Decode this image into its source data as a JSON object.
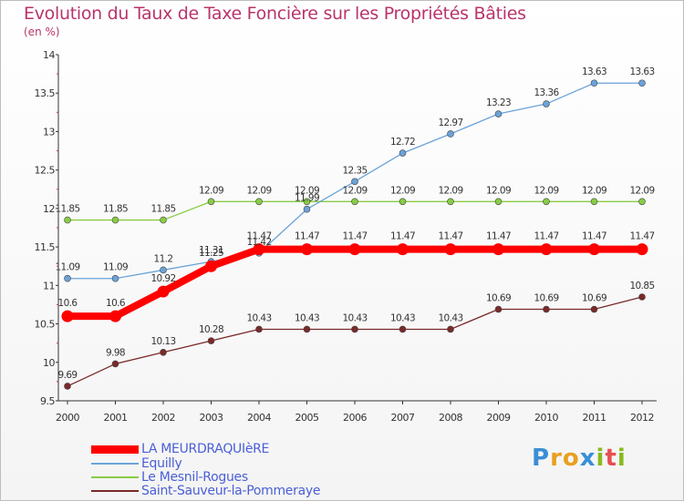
{
  "chart_data": {
    "type": "line",
    "title": "Evolution du Taux de Taxe Foncière sur les Propriétés Bâties",
    "subtitle": "(en %)",
    "xlabel": "",
    "ylabel": "",
    "categories": [
      "2000",
      "2001",
      "2002",
      "2003",
      "2004",
      "2005",
      "2006",
      "2007",
      "2008",
      "2009",
      "2010",
      "2011",
      "2012"
    ],
    "ylim": [
      9.5,
      14
    ],
    "yticks": [
      9.5,
      10,
      10.5,
      11,
      11.5,
      12,
      12.5,
      13,
      13.5,
      14
    ],
    "ytick_labels": [
      "9.5",
      "10",
      "10.5",
      "11",
      "11.5",
      "12",
      "12.5",
      "13",
      "13.5",
      "14"
    ],
    "series": [
      {
        "name": "LA MEURDRAQUIèRE",
        "color": "#ff0000",
        "values": [
          10.6,
          10.6,
          10.92,
          11.25,
          11.47,
          11.47,
          11.47,
          11.47,
          11.47,
          11.47,
          11.47,
          11.47,
          11.47
        ],
        "labels": [
          "10.6",
          "10.6",
          "10.92",
          "11.25",
          "11.47",
          "11.47",
          "11.47",
          "11.47",
          "11.47",
          "11.47",
          "11.47",
          "11.47",
          "11.47"
        ]
      },
      {
        "name": "Equilly",
        "color": "#6aa3d8",
        "values": [
          11.09,
          11.09,
          11.2,
          11.31,
          11.42,
          11.99,
          12.35,
          12.72,
          12.97,
          13.23,
          13.36,
          13.63,
          13.63
        ],
        "labels": [
          "11.09",
          "11.09",
          "11.2",
          "11.31",
          "11.42",
          "11.99",
          "12.35",
          "12.72",
          "12.97",
          "13.23",
          "13.36",
          "13.63",
          "13.63"
        ]
      },
      {
        "name": "Le Mesnil-Rogues",
        "color": "#88cc44",
        "values": [
          11.85,
          11.85,
          11.85,
          12.09,
          12.09,
          12.09,
          12.09,
          12.09,
          12.09,
          12.09,
          12.09,
          12.09,
          12.09
        ],
        "labels": [
          "11.85",
          "11.85",
          "11.85",
          "12.09",
          "12.09",
          "12.09",
          "12.09",
          "12.09",
          "12.09",
          "12.09",
          "12.09",
          "12.09",
          "12.09"
        ]
      },
      {
        "name": "Saint-Sauveur-la-Pommeraye",
        "color": "#7a2a2a",
        "values": [
          9.69,
          9.98,
          10.13,
          10.28,
          10.43,
          10.43,
          10.43,
          10.43,
          10.43,
          10.69,
          10.69,
          10.69,
          10.85
        ],
        "labels": [
          "9.69",
          "9.98",
          "10.13",
          "10.28",
          "10.43",
          "10.43",
          "10.43",
          "10.43",
          "10.43",
          "10.69",
          "10.69",
          "10.69",
          "10.85"
        ]
      }
    ],
    "legend_position": "bottom-left",
    "grid": false
  },
  "colors": {
    "axis": "#333333",
    "title": "#b8346b",
    "legend_text": "#4a5fd6"
  },
  "logo": {
    "letters": [
      "P",
      "r",
      "o",
      "x",
      "i",
      "t",
      "i"
    ],
    "colors": [
      "#3a8fd6",
      "#e8a020",
      "#e8a020",
      "#3a8fd6",
      "#88bb22",
      "#e85050",
      "#88bb22"
    ]
  }
}
